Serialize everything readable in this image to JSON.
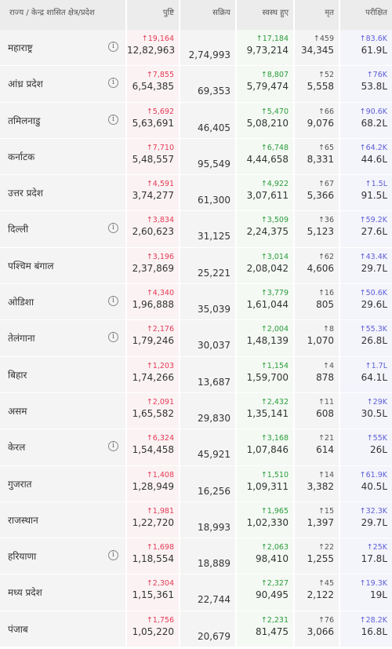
{
  "headers": {
    "state": "राज्य / केन्द्र शासित क्षेत्र/प्रदेश",
    "confirmed": "पुष्टि",
    "active": "सक्रिय",
    "recovered": "स्वस्थ हुए",
    "deceased": "मृत",
    "tested": "परीक्षित"
  },
  "rows": [
    {
      "name": "महाराष्ट्र",
      "info": true,
      "confirmed_delta": "↑19,164",
      "confirmed": "12,82,963",
      "active": "2,74,993",
      "recovered_delta": "↑17,184",
      "recovered": "9,73,214",
      "deceased_delta": "↑459",
      "deceased": "34,345",
      "tested_delta": "↑83.6K",
      "tested": "61.9L"
    },
    {
      "name": "आंध्र प्रदेश",
      "info": true,
      "confirmed_delta": "↑7,855",
      "confirmed": "6,54,385",
      "active": "69,353",
      "recovered_delta": "↑8,807",
      "recovered": "5,79,474",
      "deceased_delta": "↑52",
      "deceased": "5,558",
      "tested_delta": "↑76K",
      "tested": "53.8L"
    },
    {
      "name": "तमिलनाडु",
      "info": true,
      "confirmed_delta": "↑5,692",
      "confirmed": "5,63,691",
      "active": "46,405",
      "recovered_delta": "↑5,470",
      "recovered": "5,08,210",
      "deceased_delta": "↑66",
      "deceased": "9,076",
      "tested_delta": "↑90.6K",
      "tested": "68.2L"
    },
    {
      "name": "कर्नाटक",
      "info": false,
      "confirmed_delta": "↑7,710",
      "confirmed": "5,48,557",
      "active": "95,549",
      "recovered_delta": "↑6,748",
      "recovered": "4,44,658",
      "deceased_delta": "↑65",
      "deceased": "8,331",
      "tested_delta": "↑64.2K",
      "tested": "44.6L"
    },
    {
      "name": "उत्तर प्रदेश",
      "info": false,
      "confirmed_delta": "↑4,591",
      "confirmed": "3,74,277",
      "active": "61,300",
      "recovered_delta": "↑4,922",
      "recovered": "3,07,611",
      "deceased_delta": "↑67",
      "deceased": "5,366",
      "tested_delta": "↑1.5L",
      "tested": "91.5L"
    },
    {
      "name": "दिल्ली",
      "info": true,
      "confirmed_delta": "↑3,834",
      "confirmed": "2,60,623",
      "active": "31,125",
      "recovered_delta": "↑3,509",
      "recovered": "2,24,375",
      "deceased_delta": "↑36",
      "deceased": "5,123",
      "tested_delta": "↑59.2K",
      "tested": "27.6L"
    },
    {
      "name": "पश्चिम बंगाल",
      "info": false,
      "confirmed_delta": "↑3,196",
      "confirmed": "2,37,869",
      "active": "25,221",
      "recovered_delta": "↑3,014",
      "recovered": "2,08,042",
      "deceased_delta": "↑62",
      "deceased": "4,606",
      "tested_delta": "↑43.4K",
      "tested": "29.7L"
    },
    {
      "name": "ओडिशा",
      "info": true,
      "confirmed_delta": "↑4,340",
      "confirmed": "1,96,888",
      "active": "35,039",
      "recovered_delta": "↑3,779",
      "recovered": "1,61,044",
      "deceased_delta": "↑16",
      "deceased": "805",
      "tested_delta": "↑50.6K",
      "tested": "29.6L"
    },
    {
      "name": "तेलंगाना",
      "info": true,
      "confirmed_delta": "↑2,176",
      "confirmed": "1,79,246",
      "active": "30,037",
      "recovered_delta": "↑2,004",
      "recovered": "1,48,139",
      "deceased_delta": "↑8",
      "deceased": "1,070",
      "tested_delta": "↑55.3K",
      "tested": "26.8L"
    },
    {
      "name": "बिहार",
      "info": false,
      "confirmed_delta": "↑1,203",
      "confirmed": "1,74,266",
      "active": "13,687",
      "recovered_delta": "↑1,154",
      "recovered": "1,59,700",
      "deceased_delta": "↑4",
      "deceased": "878",
      "tested_delta": "↑1.7L",
      "tested": "64.1L"
    },
    {
      "name": "असम",
      "info": false,
      "confirmed_delta": "↑2,091",
      "confirmed": "1,65,582",
      "active": "29,830",
      "recovered_delta": "↑2,432",
      "recovered": "1,35,141",
      "deceased_delta": "↑11",
      "deceased": "608",
      "tested_delta": "↑29K",
      "tested": "30.5L"
    },
    {
      "name": "केरल",
      "info": true,
      "confirmed_delta": "↑6,324",
      "confirmed": "1,54,458",
      "active": "45,921",
      "recovered_delta": "↑3,168",
      "recovered": "1,07,846",
      "deceased_delta": "↑21",
      "deceased": "614",
      "tested_delta": "↑55K",
      "tested": "26L"
    },
    {
      "name": "गुजरात",
      "info": false,
      "confirmed_delta": "↑1,408",
      "confirmed": "1,28,949",
      "active": "16,256",
      "recovered_delta": "↑1,510",
      "recovered": "1,09,311",
      "deceased_delta": "↑14",
      "deceased": "3,382",
      "tested_delta": "↑61.9K",
      "tested": "40.5L"
    },
    {
      "name": "राजस्थान",
      "info": false,
      "confirmed_delta": "↑1,981",
      "confirmed": "1,22,720",
      "active": "18,993",
      "recovered_delta": "↑1,965",
      "recovered": "1,02,330",
      "deceased_delta": "↑15",
      "deceased": "1,397",
      "tested_delta": "↑32.3K",
      "tested": "29.7L"
    },
    {
      "name": "हरियाणा",
      "info": true,
      "confirmed_delta": "↑1,698",
      "confirmed": "1,18,554",
      "active": "18,889",
      "recovered_delta": "↑2,063",
      "recovered": "98,410",
      "deceased_delta": "↑22",
      "deceased": "1,255",
      "tested_delta": "↑25K",
      "tested": "17.8L"
    },
    {
      "name": "मध्य प्रदेश",
      "info": false,
      "confirmed_delta": "↑2,304",
      "confirmed": "1,15,361",
      "active": "22,744",
      "recovered_delta": "↑2,327",
      "recovered": "90,495",
      "deceased_delta": "↑45",
      "deceased": "2,122",
      "tested_delta": "↑19.3K",
      "tested": "19L"
    },
    {
      "name": "पंजाब",
      "info": false,
      "confirmed_delta": "↑1,756",
      "confirmed": "1,05,220",
      "active": "20,679",
      "recovered_delta": "↑2,231",
      "recovered": "81,475",
      "deceased_delta": "↑76",
      "deceased": "3,066",
      "tested_delta": "↑28.2K",
      "tested": "16.8L"
    }
  ],
  "info_glyph": "i",
  "colors": {
    "confirmed": "#e53957",
    "recovered": "#2a9d3a",
    "tested": "#5b5fd6"
  }
}
